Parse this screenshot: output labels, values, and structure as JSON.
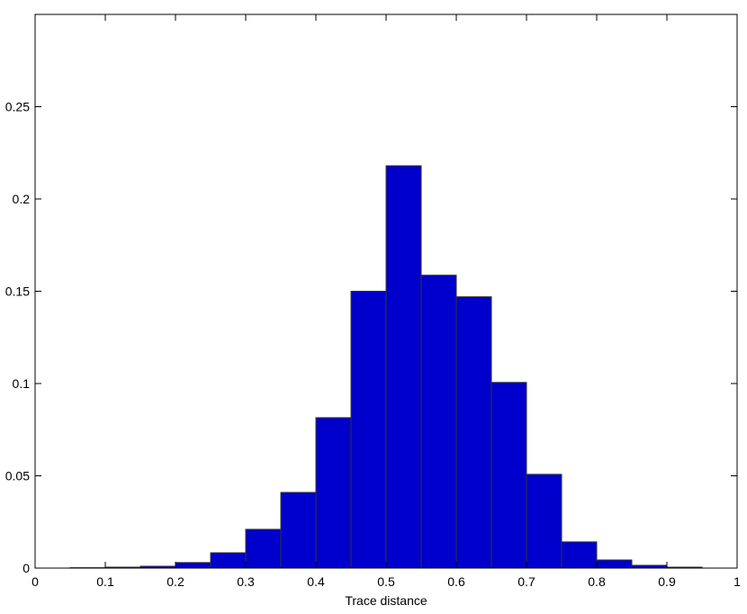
{
  "chart_data": {
    "type": "histogram",
    "xlabel": "Trace distance",
    "bins": [
      0.05,
      0.1,
      0.15,
      0.2,
      0.25,
      0.3,
      0.35,
      0.4,
      0.45,
      0.5,
      0.55,
      0.6,
      0.65,
      0.7,
      0.75,
      0.8,
      0.85,
      0.9,
      0.95
    ],
    "counts": [
      0.0002,
      0.0005,
      0.001,
      0.003,
      0.0083,
      0.021,
      0.041,
      0.0815,
      0.15,
      0.218,
      0.1587,
      0.147,
      0.1006,
      0.0508,
      0.0142,
      0.0044,
      0.0015,
      0.0005
    ],
    "color": "#0000cc",
    "edgecolor": "#333333",
    "xlim": [
      0,
      1
    ],
    "ylim": [
      0,
      0.3
    ],
    "xticks": [
      0,
      0.1,
      0.2,
      0.3,
      0.4,
      0.5,
      0.6,
      0.7,
      0.8,
      0.9,
      1
    ],
    "yticks": [
      0,
      0.05,
      0.1,
      0.15,
      0.2,
      0.25
    ],
    "grid": false
  }
}
